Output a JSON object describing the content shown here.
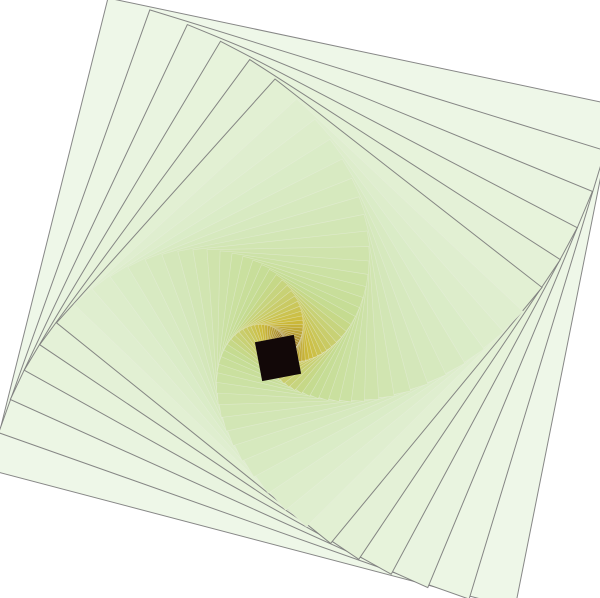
{
  "artwork": {
    "description_free": true,
    "palette": {
      "outer": "#eef7e8",
      "mid_light": "#d6e9bf",
      "mid": "#c5dc93",
      "yellow": "#cdbb3a",
      "olive": "#9c7a2a",
      "brown": "#5a3a1e",
      "center": "#120808",
      "outer_stroke": "#7a7a7a",
      "inner_stroke": "#e9efe0"
    }
  }
}
